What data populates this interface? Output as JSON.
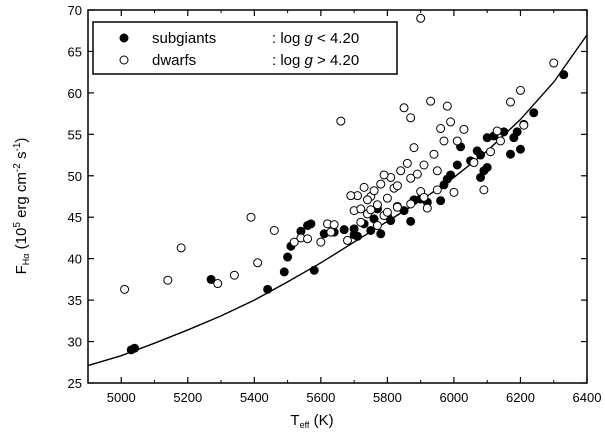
{
  "chart_data": {
    "type": "scatter",
    "xlabel": {
      "main": "T",
      "sub": "eff",
      "unit": " (K)"
    },
    "ylabel": {
      "main": "F",
      "sub": "Hα",
      "p1": " (10",
      "sup1": "5",
      "p2": " erg cm",
      "sup2": "-2",
      "p3": " s",
      "sup3": "-1",
      "p4": ")"
    },
    "xlim": [
      4900,
      6400
    ],
    "ylim": [
      25,
      70
    ],
    "xticks": [
      5000,
      5200,
      5400,
      5600,
      5800,
      6000,
      6200,
      6400
    ],
    "yticks": [
      25,
      30,
      35,
      40,
      45,
      50,
      55,
      60,
      65,
      70
    ],
    "legend": {
      "position": "top-left",
      "entries": [
        {
          "series": "subgiants",
          "label": "subgiants",
          "condition_prefix": ": log ",
          "condition_var": "g",
          "condition_suffix": " < 4.20",
          "marker": "filled-circle"
        },
        {
          "series": "dwarfs",
          "label": "dwarfs",
          "condition_prefix": ": log ",
          "condition_var": "g",
          "condition_suffix": " > 4.20",
          "marker": "open-circle"
        }
      ]
    },
    "series": [
      {
        "name": "subgiants",
        "marker": "filled-circle",
        "points": [
          [
            5030,
            29.0
          ],
          [
            5040,
            29.2
          ],
          [
            5270,
            37.5
          ],
          [
            5440,
            36.3
          ],
          [
            5490,
            38.4
          ],
          [
            5500,
            40.2
          ],
          [
            5510,
            41.5
          ],
          [
            5540,
            43.3
          ],
          [
            5560,
            44.0
          ],
          [
            5570,
            44.2
          ],
          [
            5580,
            38.6
          ],
          [
            5610,
            43.0
          ],
          [
            5640,
            43.2
          ],
          [
            5670,
            43.5
          ],
          [
            5700,
            42.9
          ],
          [
            5710,
            42.7
          ],
          [
            5730,
            44.2
          ],
          [
            5750,
            43.4
          ],
          [
            5760,
            44.8
          ],
          [
            5770,
            46.0
          ],
          [
            5780,
            43.0
          ],
          [
            5800,
            45.2
          ],
          [
            5810,
            44.6
          ],
          [
            5830,
            46.3
          ],
          [
            5850,
            45.8
          ],
          [
            5870,
            44.5
          ],
          [
            5880,
            47.1
          ],
          [
            5900,
            47.2
          ],
          [
            5920,
            46.8
          ],
          [
            5960,
            47.0
          ],
          [
            5970,
            48.9
          ],
          [
            5980,
            49.6
          ],
          [
            5990,
            50.1
          ],
          [
            6010,
            51.3
          ],
          [
            6020,
            53.5
          ],
          [
            6050,
            51.8
          ],
          [
            6080,
            49.8
          ],
          [
            6090,
            50.6
          ],
          [
            6100,
            54.6
          ],
          [
            6120,
            54.8
          ],
          [
            6150,
            55.3
          ],
          [
            6170,
            52.6
          ],
          [
            6180,
            54.6
          ],
          [
            6190,
            55.3
          ],
          [
            6200,
            53.2
          ],
          [
            6210,
            56.2
          ],
          [
            6240,
            57.6
          ],
          [
            6330,
            62.2
          ],
          [
            6070,
            53.0
          ],
          [
            6080,
            52.5
          ],
          [
            6100,
            51.0
          ],
          [
            5700,
            43.6
          ]
        ]
      },
      {
        "name": "dwarfs",
        "marker": "open-circle",
        "points": [
          [
            5010,
            36.3
          ],
          [
            5140,
            37.4
          ],
          [
            5180,
            41.3
          ],
          [
            5290,
            37.0
          ],
          [
            5340,
            38.0
          ],
          [
            5390,
            45.0
          ],
          [
            5410,
            39.5
          ],
          [
            5460,
            43.4
          ],
          [
            5520,
            42.0
          ],
          [
            5540,
            42.5
          ],
          [
            5560,
            42.4
          ],
          [
            5600,
            42.0
          ],
          [
            5620,
            44.2
          ],
          [
            5630,
            43.2
          ],
          [
            5640,
            44.1
          ],
          [
            5660,
            56.6
          ],
          [
            5680,
            42.2
          ],
          [
            5700,
            45.8
          ],
          [
            5710,
            47.6
          ],
          [
            5720,
            46.0
          ],
          [
            5730,
            48.6
          ],
          [
            5740,
            45.4
          ],
          [
            5750,
            47.5
          ],
          [
            5760,
            48.2
          ],
          [
            5770,
            46.5
          ],
          [
            5780,
            49.0
          ],
          [
            5790,
            45.2
          ],
          [
            5800,
            47.3
          ],
          [
            5810,
            49.8
          ],
          [
            5820,
            48.5
          ],
          [
            5830,
            46.2
          ],
          [
            5840,
            50.6
          ],
          [
            5850,
            58.2
          ],
          [
            5860,
            51.5
          ],
          [
            5870,
            46.6
          ],
          [
            5880,
            53.4
          ],
          [
            5890,
            50.2
          ],
          [
            5900,
            48.1
          ],
          [
            5910,
            51.3
          ],
          [
            5920,
            46.1
          ],
          [
            5930,
            59.0
          ],
          [
            5940,
            52.6
          ],
          [
            5950,
            50.6
          ],
          [
            5960,
            55.7
          ],
          [
            5970,
            54.2
          ],
          [
            5980,
            58.4
          ],
          [
            5990,
            56.5
          ],
          [
            6000,
            48.0
          ],
          [
            6010,
            54.2
          ],
          [
            6030,
            55.6
          ],
          [
            6060,
            51.6
          ],
          [
            6090,
            48.3
          ],
          [
            6110,
            52.9
          ],
          [
            6130,
            55.4
          ],
          [
            6140,
            54.2
          ],
          [
            6170,
            58.9
          ],
          [
            6200,
            60.3
          ],
          [
            6210,
            56.1
          ],
          [
            6300,
            63.6
          ],
          [
            5870,
            57.0
          ],
          [
            5900,
            69.0
          ],
          [
            5950,
            48.3
          ],
          [
            5770,
            44.0
          ],
          [
            5720,
            44.4
          ],
          [
            5690,
            47.6
          ],
          [
            5790,
            50.1
          ],
          [
            5870,
            49.7
          ],
          [
            5910,
            47.4
          ],
          [
            5800,
            45.6
          ],
          [
            5740,
            47.1
          ],
          [
            5830,
            48.8
          ],
          [
            5750,
            45.9
          ]
        ]
      },
      {
        "name": "fit",
        "type": "line",
        "points": [
          [
            4900,
            27.1
          ],
          [
            5000,
            28.3
          ],
          [
            5100,
            29.8
          ],
          [
            5200,
            31.4
          ],
          [
            5300,
            33.1
          ],
          [
            5400,
            35.0
          ],
          [
            5500,
            37.2
          ],
          [
            5600,
            39.5
          ],
          [
            5700,
            42.0
          ],
          [
            5800,
            44.5
          ],
          [
            5900,
            47.0
          ],
          [
            6000,
            49.8
          ],
          [
            6100,
            53.0
          ],
          [
            6200,
            56.8
          ],
          [
            6300,
            61.3
          ],
          [
            6400,
            67.0
          ]
        ]
      }
    ]
  }
}
